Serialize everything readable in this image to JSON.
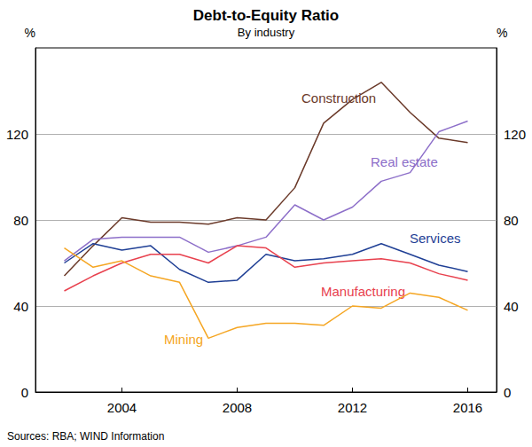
{
  "chart_data": {
    "type": "line",
    "title": "Debt-to-Equity Ratio",
    "subtitle": "By industry",
    "y_label": "%",
    "y2_label": "%",
    "source": "Sources: RBA; WIND Information",
    "x": [
      2002,
      2003,
      2004,
      2005,
      2006,
      2007,
      2008,
      2009,
      2010,
      2011,
      2012,
      2013,
      2014,
      2015,
      2016
    ],
    "xlim": [
      2001,
      2017
    ],
    "xticks": [
      2004,
      2008,
      2012,
      2016
    ],
    "ylim": [
      0,
      160
    ],
    "yticks": [
      0,
      40,
      80,
      120
    ],
    "y2lim": [
      0,
      160
    ],
    "y2ticks": [
      0,
      40,
      80,
      120
    ],
    "grid": true,
    "series": [
      {
        "name": "Construction",
        "color": "#6b3a2a",
        "values": [
          54,
          68,
          81,
          79,
          79,
          78,
          81,
          80,
          95,
          125,
          136,
          144,
          130,
          118,
          116
        ]
      },
      {
        "name": "Real estate",
        "color": "#8d6fc9",
        "values": [
          61,
          71,
          72,
          72,
          72,
          65,
          68,
          72,
          87,
          80,
          86,
          98,
          102,
          121,
          126
        ]
      },
      {
        "name": "Services",
        "color": "#1f3f95",
        "values": [
          60,
          69,
          66,
          68,
          57,
          51,
          52,
          64,
          61,
          62,
          64,
          69,
          64,
          59,
          56
        ]
      },
      {
        "name": "Manufacturing",
        "color": "#e8414e",
        "values": [
          47,
          54,
          60,
          64,
          64,
          60,
          68,
          67,
          58,
          60,
          61,
          62,
          60,
          55,
          52
        ]
      },
      {
        "name": "Mining",
        "color": "#f5a623",
        "values": [
          67,
          58,
          61,
          54,
          51,
          25,
          30,
          32,
          32,
          31,
          40,
          39,
          46,
          44,
          38
        ]
      }
    ]
  }
}
